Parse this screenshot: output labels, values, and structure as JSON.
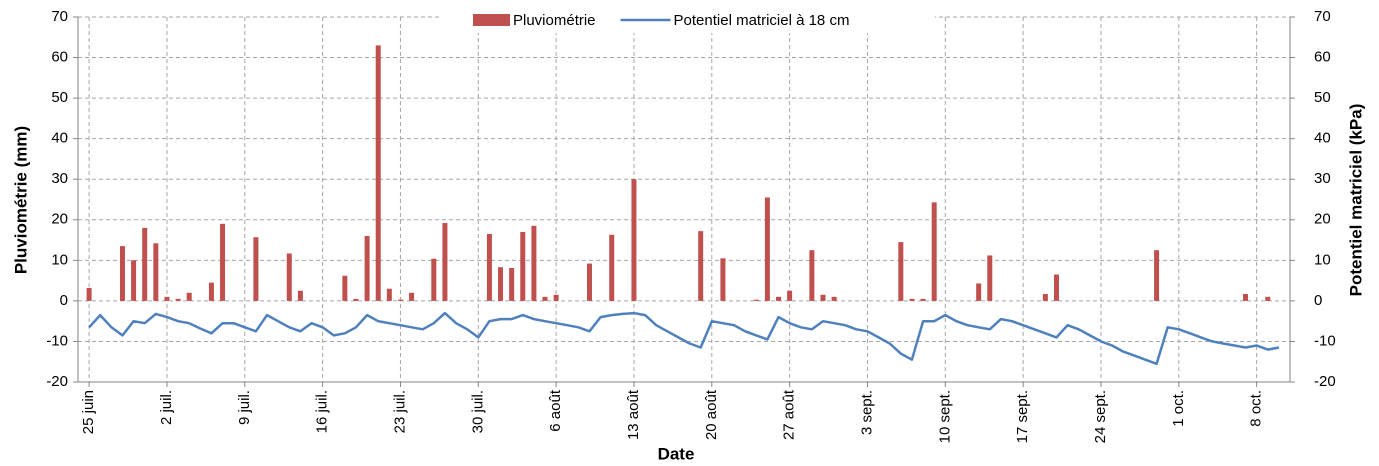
{
  "chart_data": {
    "type": "combo",
    "xlabel": "Date",
    "ylabel": "Pluviométrie (mm)",
    "y2label": "Potentiel matriciel (kPa)",
    "xlim": [
      "06-24",
      "10-11"
    ],
    "xticks": [
      {
        "value": "06-25",
        "label": "25 juin"
      },
      {
        "value": "07-02",
        "label": "2 juil."
      },
      {
        "value": "07-09",
        "label": "9 juil."
      },
      {
        "value": "07-16",
        "label": "16 juil."
      },
      {
        "value": "07-23",
        "label": "23 juil."
      },
      {
        "value": "07-30",
        "label": "30 juil."
      },
      {
        "value": "08-06",
        "label": "6 août"
      },
      {
        "value": "08-13",
        "label": "13 août"
      },
      {
        "value": "08-20",
        "label": "20 août"
      },
      {
        "value": "08-27",
        "label": "27 août"
      },
      {
        "value": "09-03",
        "label": "3 sept."
      },
      {
        "value": "09-10",
        "label": "10 sept."
      },
      {
        "value": "09-17",
        "label": "17 sept."
      },
      {
        "value": "09-24",
        "label": "24 sept."
      },
      {
        "value": "10-01",
        "label": "1 oct."
      },
      {
        "value": "10-08",
        "label": "8 oct."
      }
    ],
    "ylim": [
      -20,
      70
    ],
    "yticks": [
      -20,
      -10,
      0,
      10,
      20,
      30,
      40,
      50,
      60,
      70
    ],
    "y2lim": [
      -20,
      70
    ],
    "y2ticks": [
      -20,
      -10,
      0,
      10,
      20,
      30,
      40,
      50,
      60,
      70
    ],
    "grid": true,
    "legend": "top",
    "series": [
      {
        "name": "Pluviométrie",
        "type": "bar",
        "color": "#c0504d",
        "x": [
          "06-25",
          "06-28",
          "06-29",
          "06-30",
          "07-01",
          "07-02",
          "07-03",
          "07-04",
          "07-06",
          "07-07",
          "07-10",
          "07-13",
          "07-14",
          "07-18",
          "07-19",
          "07-20",
          "07-21",
          "07-22",
          "07-23",
          "07-24",
          "07-26",
          "07-27",
          "07-31",
          "08-01",
          "08-02",
          "08-03",
          "08-04",
          "08-05",
          "08-06",
          "08-09",
          "08-11",
          "08-13",
          "08-19",
          "08-21",
          "08-24",
          "08-25",
          "08-26",
          "08-27",
          "08-29",
          "08-30",
          "08-31",
          "09-06",
          "09-07",
          "09-08",
          "09-09",
          "09-13",
          "09-14",
          "09-19",
          "09-20",
          "09-29",
          "10-07",
          "10-09"
        ],
        "values": [
          3.2,
          13.5,
          10,
          18,
          14.2,
          1,
          0.5,
          2,
          4.5,
          19,
          15.7,
          11.7,
          2.5,
          6.2,
          0.5,
          16,
          63,
          3,
          0.3,
          2,
          10.4,
          19.2,
          16.5,
          8.3,
          8.1,
          17,
          18.5,
          1,
          1.5,
          9.2,
          16.3,
          30,
          17.2,
          10.5,
          0.3,
          25.5,
          1,
          2.5,
          12.5,
          1.5,
          1,
          14.5,
          0.5,
          0.5,
          24.3,
          4.3,
          11.2,
          1.7,
          6.5,
          12.5,
          1.7,
          1
        ]
      },
      {
        "name": "Potentiel matriciel à 18 cm",
        "type": "line",
        "color": "#4f81bd",
        "axis": "y2",
        "x": [
          "06-25",
          "06-26",
          "06-27",
          "06-28",
          "06-29",
          "06-30",
          "07-01",
          "07-02",
          "07-03",
          "07-04",
          "07-05",
          "07-06",
          "07-07",
          "07-08",
          "07-09",
          "07-10",
          "07-11",
          "07-12",
          "07-13",
          "07-14",
          "07-15",
          "07-16",
          "07-17",
          "07-18",
          "07-19",
          "07-20",
          "07-21",
          "07-22",
          "07-23",
          "07-24",
          "07-25",
          "07-26",
          "07-27",
          "07-28",
          "07-29",
          "07-30",
          "07-31",
          "08-01",
          "08-02",
          "08-03",
          "08-04",
          "08-05",
          "08-06",
          "08-07",
          "08-08",
          "08-09",
          "08-10",
          "08-11",
          "08-12",
          "08-13",
          "08-14",
          "08-15",
          "08-16",
          "08-17",
          "08-18",
          "08-19",
          "08-20",
          "08-21",
          "08-22",
          "08-23",
          "08-24",
          "08-25",
          "08-26",
          "08-27",
          "08-28",
          "08-29",
          "08-30",
          "08-31",
          "09-01",
          "09-02",
          "09-03",
          "09-04",
          "09-05",
          "09-06",
          "09-07",
          "09-08",
          "09-09",
          "09-10",
          "09-11",
          "09-12",
          "09-13",
          "09-14",
          "09-15",
          "09-16",
          "09-17",
          "09-18",
          "09-19",
          "09-20",
          "09-21",
          "09-22",
          "09-23",
          "09-24",
          "09-25",
          "09-26",
          "09-27",
          "09-28",
          "09-29",
          "09-30",
          "10-01",
          "10-02",
          "10-03",
          "10-04",
          "10-05",
          "10-06",
          "10-07",
          "10-08",
          "10-09",
          "10-10"
        ],
        "values": [
          -6.5,
          -3.5,
          -6.5,
          -8.5,
          -5,
          -5.5,
          -3.2,
          -4,
          -5,
          -5.5,
          -6.8,
          -8,
          -5.5,
          -5.5,
          -6.5,
          -7.5,
          -3.5,
          -5,
          -6.5,
          -7.5,
          -5.5,
          -6.5,
          -8.5,
          -8,
          -6.5,
          -3.5,
          -5,
          -5.5,
          -6,
          -6.5,
          -7,
          -5.5,
          -3,
          -5.5,
          -7,
          -9,
          -5,
          -4.5,
          -4.5,
          -3.5,
          -4.5,
          -5,
          -5.5,
          -6,
          -6.5,
          -7.5,
          -4,
          -3.5,
          -3.2,
          -3,
          -3.5,
          -6,
          -7.5,
          -9,
          -10.5,
          -11.5,
          -5,
          -5.5,
          -6,
          -7.5,
          -8.5,
          -9.5,
          -4,
          -5.5,
          -6.5,
          -7,
          -5,
          -5.5,
          -6,
          -7,
          -7.5,
          -9,
          -10.5,
          -13,
          -14.5,
          -5,
          -5,
          -3.5,
          -5,
          -6,
          -6.5,
          -7,
          -4.5,
          -5,
          -6,
          -7,
          -8,
          -9,
          -6,
          -7,
          -8.5,
          -10,
          -11,
          -12.5,
          -13.5,
          -14.5,
          -15.5,
          -6.5,
          -7,
          -8,
          -9,
          -10,
          -10.5,
          -11,
          -11.5,
          -11,
          -12,
          -11.5
        ]
      }
    ]
  }
}
